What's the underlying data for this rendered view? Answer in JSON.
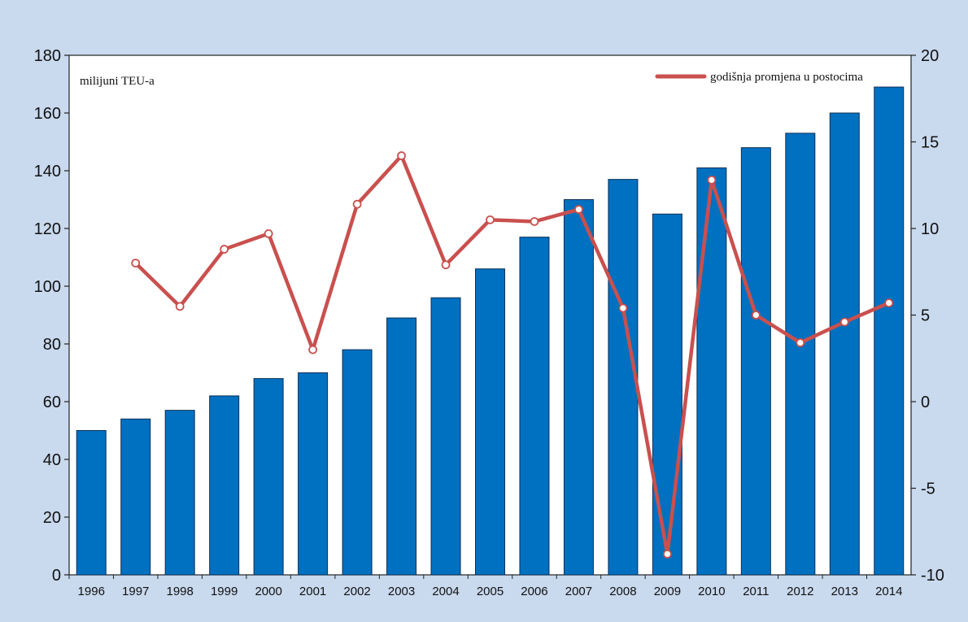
{
  "chart_data": {
    "type": "bar",
    "title": "",
    "unit_label": "milijuni TEU-a",
    "categories": [
      "1996",
      "1997",
      "1998",
      "1999",
      "2000",
      "2001",
      "2002",
      "2003",
      "2004",
      "2005",
      "2006",
      "2007",
      "2008",
      "2009",
      "2010",
      "2011",
      "2012",
      "2013",
      "2014"
    ],
    "series": [
      {
        "type": "bar",
        "axis": "left",
        "values": [
          50,
          54,
          57,
          62,
          68,
          70,
          78,
          89,
          96,
          106,
          117,
          130,
          137,
          125,
          141,
          148,
          153,
          160,
          169
        ]
      },
      {
        "type": "line",
        "axis": "right",
        "name": "godišnja promjena u postocima",
        "values": [
          null,
          8.0,
          5.5,
          8.8,
          9.7,
          3.0,
          11.4,
          14.2,
          7.9,
          10.5,
          10.4,
          11.1,
          5.4,
          -8.8,
          12.8,
          5.0,
          3.4,
          4.6,
          5.7
        ]
      }
    ],
    "y_left": {
      "lim": [
        0,
        180
      ],
      "ticks": [
        0,
        20,
        40,
        60,
        80,
        100,
        120,
        140,
        160,
        180
      ]
    },
    "y_right": {
      "lim": [
        -10,
        20
      ],
      "ticks": [
        -10,
        -5,
        0,
        5,
        10,
        15,
        20
      ]
    },
    "grid": false,
    "legend_position": "top-right",
    "colors": {
      "bar": "#0070c0",
      "line": "#c9504e",
      "marker_fill": "#ffffff",
      "background": "#c9d9ee",
      "plot_bg": "#ffffff"
    }
  }
}
